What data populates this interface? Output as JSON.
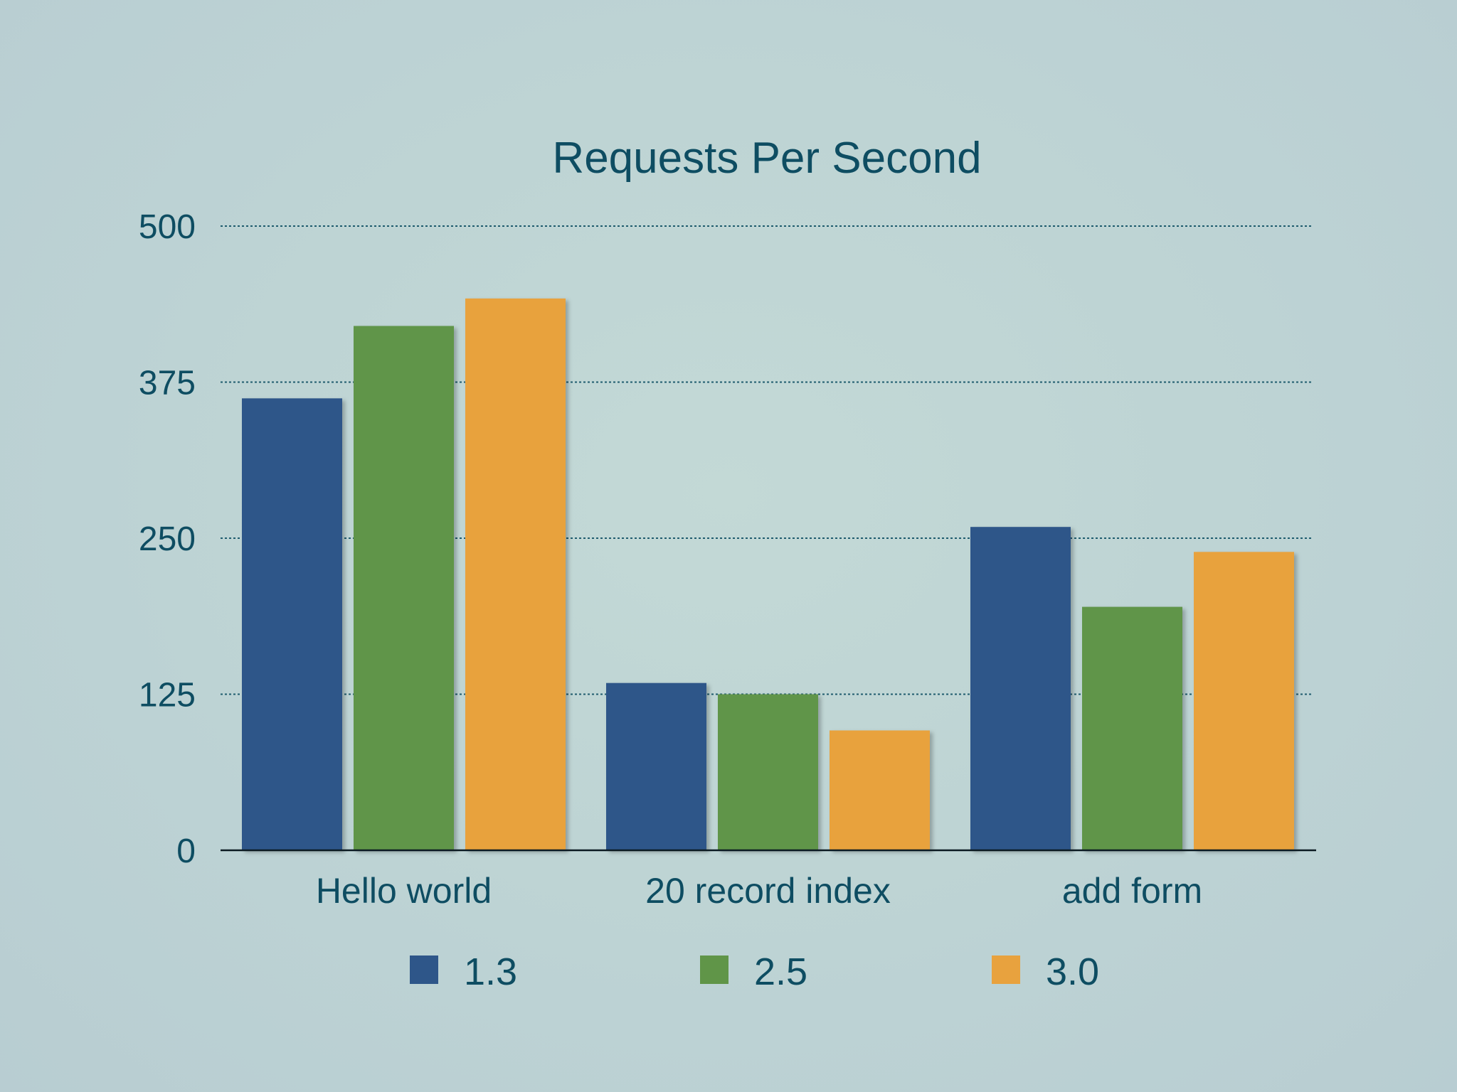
{
  "chart_data": {
    "type": "bar",
    "title": "Requests Per Second",
    "xlabel": "",
    "ylabel": "",
    "categories": [
      "Hello world",
      "20 record index",
      "add form"
    ],
    "series": [
      {
        "name": "1.3",
        "color": "#2e5689",
        "values": [
          362,
          134,
          259
        ]
      },
      {
        "name": "2.5",
        "color": "#609548",
        "values": [
          420,
          125,
          195
        ]
      },
      {
        "name": "3.0",
        "color": "#e8a23e",
        "values": [
          442,
          96,
          239
        ]
      }
    ],
    "ylim": [
      0,
      500
    ],
    "yticks": [
      "0",
      "125",
      "250",
      "375",
      "500"
    ],
    "grid": true,
    "legend": "bottom"
  }
}
